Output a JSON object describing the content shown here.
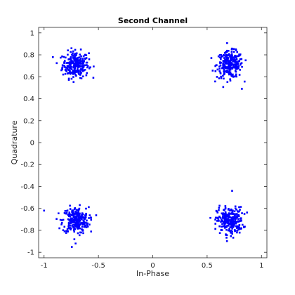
{
  "colors": {
    "background": "#ffffff",
    "axes": "#262626",
    "points": "#0000ff"
  },
  "chart_data": {
    "type": "scatter",
    "title": "Second Channel",
    "xlabel": "In-Phase",
    "ylabel": "Quadrature",
    "xlim": [
      -1.05,
      1.05
    ],
    "ylim": [
      -1.05,
      1.05
    ],
    "xticks": [
      -1,
      -0.5,
      0,
      0.5,
      1
    ],
    "xtick_labels": [
      "-1",
      "-0.5",
      "0",
      "0.5",
      "1"
    ],
    "yticks": [
      1,
      0.8,
      0.6,
      0.4,
      0.2,
      0,
      -0.2,
      -0.4,
      -0.6,
      -0.8,
      -1
    ],
    "ytick_labels": [
      "1",
      "0.8",
      "0.6",
      "0.4",
      "0.2",
      "0",
      "-0.2",
      "-0.4",
      "-0.6",
      "-0.8",
      "-1"
    ],
    "grid": false,
    "legend": "none",
    "series": [
      {
        "color": "#0000ff",
        "clusters": [
          {
            "center": [
              -0.71,
              0.71
            ],
            "spread": 0.06,
            "count": 260
          },
          {
            "center": [
              0.71,
              0.71
            ],
            "spread": 0.06,
            "count": 260
          },
          {
            "center": [
              -0.71,
              -0.71
            ],
            "spread": 0.06,
            "count": 260
          },
          {
            "center": [
              0.71,
              -0.71
            ],
            "spread": 0.06,
            "count": 260
          }
        ],
        "outliers": [
          [
            -1.0,
            -0.62
          ],
          [
            0.73,
            -0.44
          ],
          [
            0.82,
            0.49
          ],
          [
            -0.71,
            -0.92
          ]
        ]
      }
    ]
  }
}
